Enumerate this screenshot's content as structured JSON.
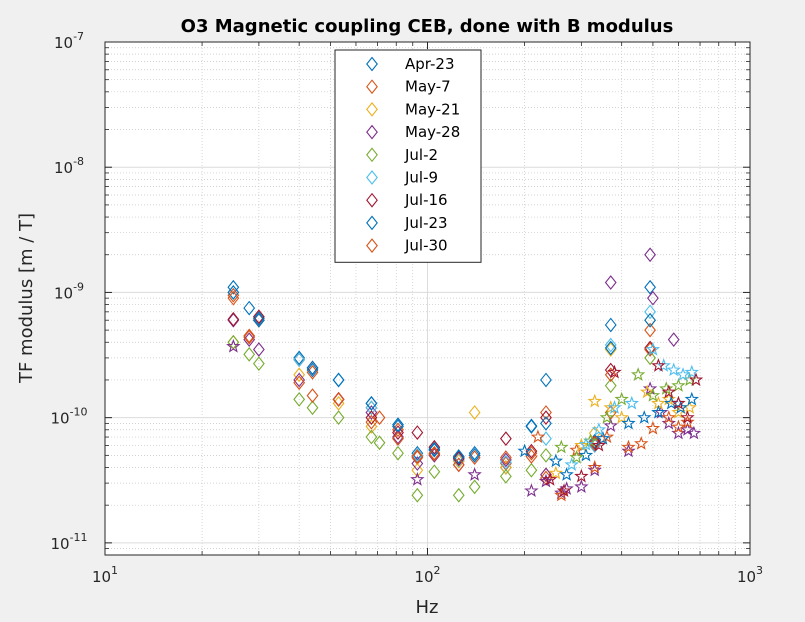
{
  "chart_data": {
    "type": "scatter",
    "title": "O3 Magnetic coupling CEB, done with B modulus",
    "xlabel": "Hz",
    "ylabel": "TF modulus [m / T]",
    "xscale": "log",
    "yscale": "log",
    "xlim": [
      10,
      1000
    ],
    "ylim": [
      8e-12,
      1e-07
    ],
    "grid": true,
    "minor_grid": true,
    "legend_position": "top-center",
    "x_ticks": [
      {
        "base": "10",
        "exp": "1"
      },
      {
        "base": "10",
        "exp": "2"
      },
      {
        "base": "10",
        "exp": "3"
      }
    ],
    "y_ticks": [
      {
        "base": "10",
        "exp": "-11"
      },
      {
        "base": "10",
        "exp": "-10"
      },
      {
        "base": "10",
        "exp": "-9"
      },
      {
        "base": "10",
        "exp": "-8"
      },
      {
        "base": "10",
        "exp": "-7"
      }
    ],
    "series": [
      {
        "name": "Apr-23",
        "color": "#0072BD",
        "marker": "diamond",
        "x": [
          25,
          28,
          30,
          40,
          44,
          53,
          67,
          81,
          93,
          105,
          125,
          140,
          175,
          210,
          233,
          330,
          370,
          490
        ],
        "y": [
          1.1e-09,
          7.5e-10,
          6.2e-10,
          3e-10,
          2.4e-10,
          2e-10,
          1.3e-10,
          8.5e-11,
          5.2e-11,
          5.5e-11,
          4.8e-11,
          5e-11,
          4e-11,
          8.5e-11,
          2e-10,
          6.5e-11,
          5.5e-10,
          1.1e-09
        ]
      },
      {
        "name": "May-7",
        "color": "#D95319",
        "marker": "diamond",
        "x": [
          25,
          28,
          30,
          40,
          44,
          53,
          67,
          71,
          81,
          93,
          105,
          125,
          140,
          175,
          210,
          233,
          330,
          370,
          490
        ],
        "y": [
          9.5e-10,
          4.5e-10,
          6e-10,
          2.9e-10,
          2.3e-10,
          1.4e-10,
          1.2e-10,
          1e-10,
          8e-11,
          4.8e-11,
          5.2e-11,
          4.5e-11,
          4.8e-11,
          4.3e-11,
          5.2e-11,
          1.1e-10,
          6e-11,
          1.1e-10,
          5e-10
        ]
      },
      {
        "name": "May-21",
        "color": "#EDB120",
        "marker": "diamond",
        "x": [
          25,
          40,
          53,
          67,
          93,
          125,
          140,
          175,
          233,
          330,
          370,
          490
        ],
        "y": [
          4e-10,
          2.2e-10,
          1.3e-10,
          8.5e-11,
          3.8e-11,
          4.5e-11,
          1.1e-10,
          4e-11,
          3.5e-11,
          7.5e-11,
          3.5e-10,
          6e-10
        ]
      },
      {
        "name": "May-28",
        "color": "#7E2F8E",
        "marker": "diamond",
        "x": [
          25,
          28,
          30,
          40,
          53,
          67,
          81,
          93,
          105,
          125,
          175,
          233,
          330,
          370,
          490,
          500,
          580
        ],
        "y": [
          6e-10,
          4.2e-10,
          3.5e-10,
          2e-10,
          1.4e-10,
          1.1e-10,
          7e-11,
          4.3e-11,
          5e-11,
          4.2e-11,
          4.6e-11,
          3.5e-11,
          6e-11,
          1.2e-09,
          2e-09,
          9e-10,
          4.2e-10
        ]
      },
      {
        "name": "Jul-2",
        "color": "#77AC30",
        "marker": "diamond",
        "x": [
          25,
          28,
          30,
          40,
          44,
          53,
          67,
          71,
          81,
          93,
          105,
          125,
          140,
          175,
          210,
          233,
          330,
          370,
          490
        ],
        "y": [
          4e-10,
          3.2e-10,
          2.7e-10,
          1.4e-10,
          1.2e-10,
          1e-10,
          7e-11,
          6.3e-11,
          5.2e-11,
          2.4e-11,
          3.7e-11,
          2.4e-11,
          2.8e-11,
          3.4e-11,
          3.8e-11,
          5e-11,
          6e-11,
          1.8e-10,
          3e-10
        ]
      },
      {
        "name": "Jul-9",
        "color": "#4DBEEE",
        "marker": "diamond",
        "x": [
          25,
          40,
          53,
          67,
          93,
          125,
          175,
          233,
          330,
          370,
          490
        ],
        "y": [
          1e-09,
          2.9e-10,
          2e-10,
          1.2e-10,
          5e-11,
          4.6e-11,
          4.4e-11,
          6.8e-11,
          6e-11,
          3.8e-10,
          7e-10
        ]
      },
      {
        "name": "Jul-16",
        "color": "#A2142F",
        "marker": "diamond",
        "x": [
          25,
          30,
          44,
          53,
          67,
          81,
          93,
          105,
          125,
          175,
          210,
          233,
          330,
          370,
          490
        ],
        "y": [
          6.1e-10,
          6.4e-10,
          2.5e-10,
          1.4e-10,
          1e-10,
          7.6e-11,
          7.6e-11,
          5.8e-11,
          4.7e-11,
          6.8e-11,
          5.4e-11,
          1e-10,
          6.3e-11,
          2.4e-10,
          3.6e-10
        ]
      },
      {
        "name": "Jul-23",
        "color": "#0072BD",
        "marker": "diamond",
        "x": [
          25,
          30,
          44,
          53,
          67,
          81,
          105,
          125,
          140,
          210,
          233,
          330,
          370,
          490
        ],
        "y": [
          1e-09,
          6e-10,
          2.5e-10,
          2e-10,
          1.3e-10,
          8.8e-11,
          5.6e-11,
          4.9e-11,
          5.2e-11,
          8.6e-11,
          9e-11,
          6.2e-11,
          3.6e-10,
          6e-10
        ]
      },
      {
        "name": "Jul-30",
        "color": "#D95319",
        "marker": "diamond",
        "x": [
          25,
          28,
          40,
          44,
          53,
          67,
          81,
          93,
          105,
          125,
          175,
          210,
          233,
          330,
          370,
          490
        ],
        "y": [
          9e-10,
          4.4e-10,
          1.9e-10,
          1.5e-10,
          1.4e-10,
          9.2e-11,
          6.8e-11,
          4.9e-11,
          5.1e-11,
          4.2e-11,
          4.8e-11,
          4.9e-11,
          3.3e-11,
          6.2e-11,
          2.2e-10,
          3.5e-10
        ]
      },
      {
        "name": "",
        "color": "#7E2F8E",
        "marker": "star",
        "x": [
          25,
          93,
          140,
          210,
          233,
          260,
          270,
          300,
          330,
          370,
          420,
          490,
          530,
          560,
          600,
          640,
          670
        ],
        "y": [
          3.7e-10,
          3.2e-11,
          3.5e-11,
          2.6e-11,
          3.1e-11,
          2.5e-11,
          2.7e-11,
          2.8e-11,
          3.8e-11,
          8.6e-11,
          5.4e-11,
          1.7e-10,
          1.1e-10,
          9e-11,
          7.5e-11,
          8e-11,
          7.5e-11
        ]
      },
      {
        "name": "",
        "color": "#D95319",
        "marker": "star",
        "x": [
          220,
          260,
          290,
          330,
          360,
          420,
          460,
          500,
          560,
          600,
          640
        ],
        "y": [
          7e-11,
          2.4e-11,
          5.5e-11,
          4e-11,
          7e-11,
          5.8e-11,
          6.2e-11,
          8.2e-11,
          1e-10,
          8.4e-11,
          9.2e-11
        ]
      },
      {
        "name": "",
        "color": "#EDB120",
        "marker": "star",
        "x": [
          250,
          300,
          330,
          370,
          400,
          480,
          520,
          560,
          600,
          650
        ],
        "y": [
          3.6e-11,
          6e-11,
          1.35e-10,
          1.2e-10,
          1e-10,
          1.6e-10,
          1.3e-10,
          1.4e-10,
          1.1e-10,
          1.2e-10
        ]
      },
      {
        "name": "",
        "color": "#0072BD",
        "marker": "star",
        "x": [
          200,
          250,
          270,
          310,
          350,
          420,
          470,
          520,
          570,
          610,
          660
        ],
        "y": [
          5.4e-11,
          4.5e-11,
          3.5e-11,
          5e-11,
          6.8e-11,
          9e-11,
          1e-10,
          1.1e-10,
          1.3e-10,
          1.2e-10,
          1.4e-10
        ]
      },
      {
        "name": "",
        "color": "#77AC30",
        "marker": "star",
        "x": [
          260,
          290,
          320,
          360,
          400,
          450,
          500,
          550,
          600,
          650
        ],
        "y": [
          5.8e-11,
          4.8e-11,
          6.5e-11,
          1e-10,
          1.4e-10,
          2.2e-10,
          1.5e-10,
          1.7e-10,
          1.8e-10,
          2e-10
        ]
      },
      {
        "name": "",
        "color": "#4DBEEE",
        "marker": "star",
        "x": [
          280,
          310,
          340,
          380,
          430,
          500,
          540,
          580,
          620,
          660
        ],
        "y": [
          4.2e-11,
          6.1e-11,
          8e-11,
          1.2e-10,
          1.3e-10,
          3.5e-10,
          2.6e-10,
          2.4e-10,
          2.2e-10,
          2.3e-10
        ]
      },
      {
        "name": "",
        "color": "#A2142F",
        "marker": "star",
        "x": [
          240,
          265,
          300,
          340,
          380,
          520,
          560,
          600,
          640,
          680
        ],
        "y": [
          3.2e-11,
          2.6e-11,
          3.4e-11,
          6e-11,
          2.3e-10,
          2.6e-10,
          1.6e-10,
          1.3e-10,
          1e-10,
          2e-10
        ]
      }
    ]
  }
}
